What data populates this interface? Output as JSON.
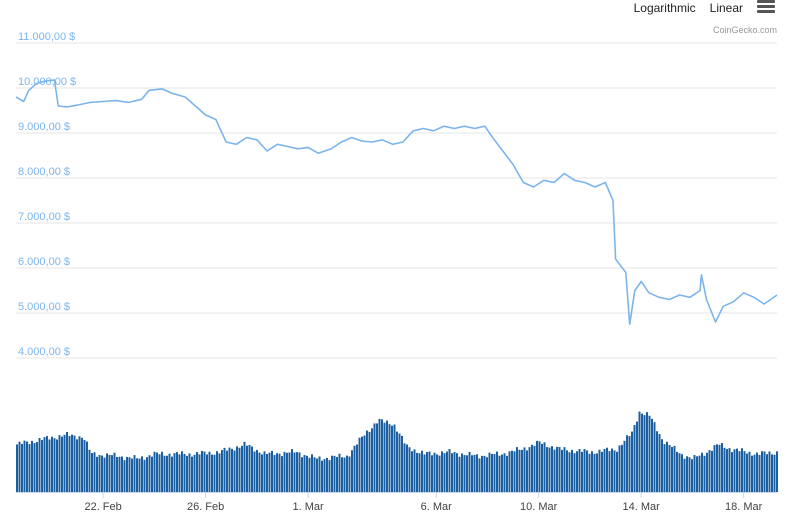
{
  "toolbar": {
    "logarithmic_label": "Logarithmic",
    "linear_label": "Linear",
    "menu_icon": "hamburger-menu-icon"
  },
  "credit": "CoinGecko.com",
  "colors": {
    "price_line": "#7cb5ec",
    "volume_bar": "#1b5fa1",
    "grid": "#e6e6e6",
    "ytick": "#7cb5ec"
  },
  "chart_data": {
    "type": "line",
    "title": "",
    "xlabel": "",
    "ylabel": "",
    "ylim": [
      4000,
      11000
    ],
    "y_ticks": [
      {
        "value": 11000,
        "label": "11.000,00 $"
      },
      {
        "value": 10000,
        "label": "10.000,00 $"
      },
      {
        "value": 9000,
        "label": "9.000,00 $"
      },
      {
        "value": 8000,
        "label": "8.000,00 $"
      },
      {
        "value": 7000,
        "label": "7.000,00 $"
      },
      {
        "value": 6000,
        "label": "6.000,00 $"
      },
      {
        "value": 5000,
        "label": "5.000,00 $"
      },
      {
        "value": 4000,
        "label": "4.000,00 $"
      }
    ],
    "x_ticks": [
      {
        "day": 22,
        "label": "22. Feb"
      },
      {
        "day": 26,
        "label": "26. Feb"
      },
      {
        "day": 30,
        "label": "1. Mar"
      },
      {
        "day": 35,
        "label": "6. Mar"
      },
      {
        "day": 39,
        "label": "10. Mar"
      },
      {
        "day": 43,
        "label": "14. Mar"
      },
      {
        "day": 47,
        "label": "18. Mar"
      }
    ],
    "xlim": [
      18.6,
      48.3
    ],
    "series": [
      {
        "points": [
          [
            18.6,
            9800
          ],
          [
            18.9,
            9700
          ],
          [
            19.1,
            9950
          ],
          [
            19.4,
            10100
          ],
          [
            19.7,
            10150
          ],
          [
            20.1,
            10180
          ],
          [
            20.25,
            9600
          ],
          [
            20.6,
            9580
          ],
          [
            21.0,
            9620
          ],
          [
            21.5,
            9680
          ],
          [
            22.0,
            9700
          ],
          [
            22.5,
            9720
          ],
          [
            23.0,
            9680
          ],
          [
            23.5,
            9750
          ],
          [
            23.8,
            9950
          ],
          [
            24.3,
            9980
          ],
          [
            24.7,
            9880
          ],
          [
            25.2,
            9800
          ],
          [
            25.6,
            9600
          ],
          [
            26.0,
            9400
          ],
          [
            26.4,
            9300
          ],
          [
            26.8,
            8800
          ],
          [
            27.2,
            8750
          ],
          [
            27.6,
            8900
          ],
          [
            28.0,
            8850
          ],
          [
            28.4,
            8600
          ],
          [
            28.8,
            8750
          ],
          [
            29.2,
            8700
          ],
          [
            29.6,
            8650
          ],
          [
            30.0,
            8680
          ],
          [
            30.4,
            8550
          ],
          [
            30.9,
            8650
          ],
          [
            31.3,
            8800
          ],
          [
            31.7,
            8900
          ],
          [
            32.1,
            8820
          ],
          [
            32.5,
            8800
          ],
          [
            32.9,
            8850
          ],
          [
            33.3,
            8750
          ],
          [
            33.7,
            8800
          ],
          [
            34.1,
            9050
          ],
          [
            34.5,
            9100
          ],
          [
            34.9,
            9050
          ],
          [
            35.3,
            9150
          ],
          [
            35.7,
            9100
          ],
          [
            36.1,
            9150
          ],
          [
            36.5,
            9100
          ],
          [
            36.9,
            9150
          ],
          [
            37.2,
            8900
          ],
          [
            37.6,
            8600
          ],
          [
            38.0,
            8300
          ],
          [
            38.4,
            7900
          ],
          [
            38.8,
            7800
          ],
          [
            39.2,
            7950
          ],
          [
            39.6,
            7900
          ],
          [
            40.0,
            8100
          ],
          [
            40.4,
            7950
          ],
          [
            40.8,
            7900
          ],
          [
            41.2,
            7800
          ],
          [
            41.6,
            7900
          ],
          [
            41.9,
            7500
          ],
          [
            42.0,
            6200
          ],
          [
            42.2,
            6050
          ],
          [
            42.4,
            5900
          ],
          [
            42.55,
            4750
          ],
          [
            42.75,
            5500
          ],
          [
            43.0,
            5700
          ],
          [
            43.3,
            5450
          ],
          [
            43.7,
            5350
          ],
          [
            44.1,
            5300
          ],
          [
            44.5,
            5400
          ],
          [
            44.9,
            5350
          ],
          [
            45.3,
            5500
          ],
          [
            45.35,
            5850
          ],
          [
            45.55,
            5300
          ],
          [
            45.9,
            4800
          ],
          [
            46.2,
            5150
          ],
          [
            46.6,
            5250
          ],
          [
            47.0,
            5450
          ],
          [
            47.4,
            5350
          ],
          [
            47.8,
            5200
          ],
          [
            48.3,
            5400
          ]
        ]
      }
    ],
    "volume": {
      "relative_levels": [
        [
          18.6,
          0.5
        ],
        [
          19.5,
          0.55
        ],
        [
          20.5,
          0.6
        ],
        [
          21.2,
          0.58
        ],
        [
          21.5,
          0.4
        ],
        [
          22.5,
          0.38
        ],
        [
          23.3,
          0.35
        ],
        [
          24.0,
          0.4
        ],
        [
          25.0,
          0.4
        ],
        [
          25.5,
          0.4
        ],
        [
          26.5,
          0.42
        ],
        [
          27.5,
          0.5
        ],
        [
          28.3,
          0.4
        ],
        [
          29.5,
          0.42
        ],
        [
          30.3,
          0.35
        ],
        [
          31.5,
          0.38
        ],
        [
          32.2,
          0.62
        ],
        [
          32.7,
          0.75
        ],
        [
          33.3,
          0.72
        ],
        [
          33.8,
          0.48
        ],
        [
          34.5,
          0.4
        ],
        [
          35.5,
          0.42
        ],
        [
          36.5,
          0.38
        ],
        [
          37.5,
          0.4
        ],
        [
          38.3,
          0.45
        ],
        [
          39.0,
          0.52
        ],
        [
          39.8,
          0.45
        ],
        [
          41.0,
          0.42
        ],
        [
          42.0,
          0.45
        ],
        [
          42.6,
          0.62
        ],
        [
          42.9,
          0.85
        ],
        [
          43.3,
          0.8
        ],
        [
          43.8,
          0.55
        ],
        [
          44.5,
          0.4
        ],
        [
          45.0,
          0.35
        ],
        [
          45.5,
          0.42
        ],
        [
          46.0,
          0.5
        ],
        [
          46.5,
          0.45
        ],
        [
          47.5,
          0.4
        ],
        [
          48.3,
          0.42
        ]
      ]
    }
  }
}
